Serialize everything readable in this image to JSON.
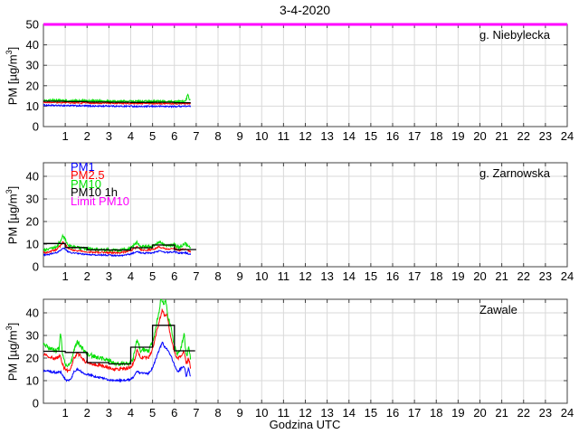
{
  "title": "3-4-2020",
  "xlabel": "Godzina UTC",
  "ylabel": {
    "pre": "PM [µg/m",
    "sup": "3",
    "post": "]"
  },
  "legend": {
    "items": [
      {
        "label": "PM1",
        "color": "#0000FF"
      },
      {
        "label": "PM2.5",
        "color": "#FF0000"
      },
      {
        "label": "PM10",
        "color": "#00DF00"
      },
      {
        "label": "PM10 1h",
        "color": "#000000"
      },
      {
        "label": "Limit PM10",
        "color": "#FF00FF"
      }
    ]
  },
  "chart_data": [
    {
      "type": "line",
      "station": "g. Niebylecka",
      "xlim": [
        0,
        24
      ],
      "ylim": [
        0,
        50
      ],
      "xticks": [
        1,
        2,
        3,
        4,
        5,
        6,
        7,
        8,
        9,
        10,
        11,
        12,
        13,
        14,
        15,
        16,
        17,
        18,
        19,
        20,
        21,
        22,
        23,
        24
      ],
      "yticks": [
        0,
        10,
        20,
        30,
        40,
        50
      ],
      "grid": true,
      "limit": {
        "label": "Limit PM10",
        "value": 50,
        "color": "#FF00FF"
      },
      "series": [
        {
          "name": "PM1",
          "color": "#0000FF",
          "noise": 0.35,
          "points": [
            [
              0,
              10.5
            ],
            [
              0.5,
              10.3
            ],
            [
              1,
              10.3
            ],
            [
              1.5,
              10.2
            ],
            [
              2,
              10.1
            ],
            [
              2.5,
              10.0
            ],
            [
              3,
              10.1
            ],
            [
              3.5,
              9.9
            ],
            [
              4,
              10.0
            ],
            [
              4.5,
              9.8
            ],
            [
              5,
              9.9
            ],
            [
              5.5,
              9.9
            ],
            [
              6,
              9.8
            ],
            [
              6.4,
              10.0
            ],
            [
              6.75,
              9.9
            ]
          ]
        },
        {
          "name": "PM2.5",
          "color": "#FF0000",
          "noise": 0.3,
          "points": [
            [
              0,
              11.9
            ],
            [
              1,
              11.7
            ],
            [
              2,
              11.5
            ],
            [
              3,
              11.4
            ],
            [
              4,
              11.3
            ],
            [
              5,
              11.3
            ],
            [
              6,
              11.2
            ],
            [
              6.75,
              11.3
            ]
          ]
        },
        {
          "name": "PM10",
          "color": "#00DF00",
          "noise": 0.55,
          "points": [
            [
              0,
              12.9
            ],
            [
              1,
              12.7
            ],
            [
              2,
              12.6
            ],
            [
              3,
              12.4
            ],
            [
              4,
              12.3
            ],
            [
              5,
              12.3
            ],
            [
              6,
              12.2
            ],
            [
              6.5,
              12.4
            ],
            [
              6.62,
              15.5
            ],
            [
              6.7,
              12.8
            ],
            [
              6.75,
              12.6
            ]
          ]
        },
        {
          "name": "PM10 1h",
          "color": "#000000",
          "type": "step",
          "end": 6.75,
          "hourly": [
            12.4,
            12.2,
            12.0,
            11.9,
            11.8,
            11.9,
            11.7
          ]
        }
      ]
    },
    {
      "type": "line",
      "station": "g. Zarnowska",
      "xlim": [
        0,
        24
      ],
      "ylim": [
        0,
        46
      ],
      "xticks": [
        1,
        2,
        3,
        4,
        5,
        6,
        7,
        8,
        9,
        10,
        11,
        12,
        13,
        14,
        15,
        16,
        17,
        18,
        19,
        20,
        21,
        22,
        23,
        24
      ],
      "yticks": [
        0,
        10,
        20,
        30,
        40
      ],
      "grid": true,
      "limit": {
        "label": "Limit PM10",
        "value": 50,
        "color": "#FF00FF"
      },
      "series": [
        {
          "name": "PM1",
          "color": "#0000FF",
          "noise": 0.3,
          "points": [
            [
              0,
              5.2
            ],
            [
              0.3,
              5.5
            ],
            [
              0.6,
              6.2
            ],
            [
              0.8,
              7.5
            ],
            [
              0.9,
              8.3
            ],
            [
              1.0,
              7.8
            ],
            [
              1.1,
              6.8
            ],
            [
              1.3,
              6.2
            ],
            [
              1.6,
              5.8
            ],
            [
              2,
              5.4
            ],
            [
              2.5,
              5.2
            ],
            [
              3,
              5.1
            ],
            [
              3.5,
              4.9
            ],
            [
              4,
              5.6
            ],
            [
              4.3,
              6.8
            ],
            [
              4.5,
              6.0
            ],
            [
              5,
              6.1
            ],
            [
              5.3,
              7.0
            ],
            [
              5.6,
              6.3
            ],
            [
              6,
              6.6
            ],
            [
              6.2,
              6.0
            ],
            [
              6.5,
              6.2
            ],
            [
              6.75,
              5.4
            ]
          ]
        },
        {
          "name": "PM2.5",
          "color": "#FF0000",
          "noise": 0.4,
          "points": [
            [
              0,
              6.2
            ],
            [
              0.3,
              6.6
            ],
            [
              0.6,
              7.6
            ],
            [
              0.8,
              9.5
            ],
            [
              0.9,
              11.0
            ],
            [
              1.0,
              10.0
            ],
            [
              1.1,
              8.5
            ],
            [
              1.3,
              7.5
            ],
            [
              1.6,
              7.0
            ],
            [
              2,
              6.6
            ],
            [
              2.5,
              6.4
            ],
            [
              3,
              6.3
            ],
            [
              3.5,
              6.1
            ],
            [
              4,
              7.0
            ],
            [
              4.3,
              8.8
            ],
            [
              4.5,
              7.4
            ],
            [
              5,
              7.6
            ],
            [
              5.3,
              8.8
            ],
            [
              5.6,
              7.8
            ],
            [
              6,
              8.1
            ],
            [
              6.2,
              7.3
            ],
            [
              6.5,
              7.8
            ],
            [
              6.75,
              6.6
            ]
          ]
        },
        {
          "name": "PM10",
          "color": "#00DF00",
          "noise": 0.7,
          "points": [
            [
              0,
              7.2
            ],
            [
              0.3,
              7.8
            ],
            [
              0.6,
              9.0
            ],
            [
              0.8,
              11.5
            ],
            [
              0.9,
              13.8
            ],
            [
              1.0,
              12.0
            ],
            [
              1.1,
              10.0
            ],
            [
              1.3,
              8.8
            ],
            [
              1.6,
              8.3
            ],
            [
              2,
              8.0
            ],
            [
              2.5,
              7.6
            ],
            [
              3,
              7.6
            ],
            [
              3.5,
              7.2
            ],
            [
              4,
              8.2
            ],
            [
              4.3,
              10.8
            ],
            [
              4.5,
              8.8
            ],
            [
              5,
              9.0
            ],
            [
              5.3,
              11.0
            ],
            [
              5.6,
              9.2
            ],
            [
              6,
              9.8
            ],
            [
              6.2,
              8.6
            ],
            [
              6.5,
              10.2
            ],
            [
              6.75,
              8.0
            ]
          ]
        },
        {
          "name": "PM10 1h",
          "color": "#000000",
          "type": "step",
          "end": 7.0,
          "hourly": [
            10.3,
            8.5,
            7.5,
            7.4,
            8.4,
            9.6,
            7.6
          ]
        }
      ]
    },
    {
      "type": "line",
      "station": "Zawale",
      "xlim": [
        0,
        24
      ],
      "ylim": [
        0,
        46
      ],
      "xticks": [
        1,
        2,
        3,
        4,
        5,
        6,
        7,
        8,
        9,
        10,
        11,
        12,
        13,
        14,
        15,
        16,
        17,
        18,
        19,
        20,
        21,
        22,
        23,
        24
      ],
      "yticks": [
        0,
        10,
        20,
        30,
        40
      ],
      "grid": true,
      "limit": {
        "label": "Limit PM10",
        "value": 50,
        "color": "#FF00FF"
      },
      "series": [
        {
          "name": "PM1",
          "color": "#0000FF",
          "noise": 0.45,
          "points": [
            [
              0,
              14.5
            ],
            [
              0.3,
              14.0
            ],
            [
              0.6,
              13.6
            ],
            [
              0.8,
              13.8
            ],
            [
              0.95,
              11.0
            ],
            [
              1.1,
              10.0
            ],
            [
              1.25,
              10.4
            ],
            [
              1.4,
              14.0
            ],
            [
              1.55,
              15.0
            ],
            [
              1.7,
              14.2
            ],
            [
              1.9,
              13.0
            ],
            [
              2.1,
              12.6
            ],
            [
              2.4,
              11.6
            ],
            [
              2.7,
              11.2
            ],
            [
              3.0,
              10.2
            ],
            [
              3.3,
              10.0
            ],
            [
              3.6,
              10.2
            ],
            [
              3.9,
              10.4
            ],
            [
              4.1,
              11.2
            ],
            [
              4.3,
              14.3
            ],
            [
              4.45,
              13.2
            ],
            [
              4.6,
              13.4
            ],
            [
              4.8,
              13.0
            ],
            [
              5.0,
              15.5
            ],
            [
              5.15,
              19.5
            ],
            [
              5.3,
              23.5
            ],
            [
              5.45,
              27.0
            ],
            [
              5.55,
              25.0
            ],
            [
              5.7,
              23.5
            ],
            [
              5.85,
              21.0
            ],
            [
              6.0,
              17.0
            ],
            [
              6.15,
              13.8
            ],
            [
              6.3,
              15.5
            ],
            [
              6.45,
              16.5
            ],
            [
              6.55,
              11.5
            ],
            [
              6.65,
              15.8
            ],
            [
              6.75,
              11.2
            ]
          ]
        },
        {
          "name": "PM2.5",
          "color": "#FF0000",
          "noise": 0.7,
          "points": [
            [
              0,
              21.5
            ],
            [
              0.3,
              20.5
            ],
            [
              0.6,
              19.8
            ],
            [
              0.75,
              21.0
            ],
            [
              0.95,
              15.5
            ],
            [
              1.1,
              14.3
            ],
            [
              1.25,
              15.0
            ],
            [
              1.4,
              20.0
            ],
            [
              1.55,
              22.0
            ],
            [
              1.7,
              21.0
            ],
            [
              1.9,
              18.5
            ],
            [
              2.1,
              18.0
            ],
            [
              2.4,
              17.0
            ],
            [
              2.7,
              16.6
            ],
            [
              3.0,
              15.8
            ],
            [
              3.3,
              15.0
            ],
            [
              3.6,
              15.2
            ],
            [
              3.9,
              15.6
            ],
            [
              4.1,
              17.0
            ],
            [
              4.3,
              23.5
            ],
            [
              4.45,
              20.0
            ],
            [
              4.6,
              20.5
            ],
            [
              4.8,
              20.0
            ],
            [
              5.0,
              24.0
            ],
            [
              5.15,
              30.0
            ],
            [
              5.3,
              36.0
            ],
            [
              5.45,
              41.5
            ],
            [
              5.55,
              38.5
            ],
            [
              5.65,
              40.0
            ],
            [
              5.8,
              31.0
            ],
            [
              6.0,
              22.5
            ],
            [
              6.15,
              19.5
            ],
            [
              6.3,
              21.0
            ],
            [
              6.45,
              23.0
            ],
            [
              6.55,
              17.0
            ],
            [
              6.65,
              20.0
            ],
            [
              6.75,
              15.5
            ]
          ]
        },
        {
          "name": "PM10",
          "color": "#00DF00",
          "noise": 1.0,
          "points": [
            [
              0,
              26.0
            ],
            [
              0.3,
              24.0
            ],
            [
              0.6,
              23.2
            ],
            [
              0.72,
              24.5
            ],
            [
              0.79,
              31.5
            ],
            [
              0.86,
              23.0
            ],
            [
              0.95,
              18.5
            ],
            [
              1.1,
              16.2
            ],
            [
              1.25,
              17.5
            ],
            [
              1.4,
              24.0
            ],
            [
              1.55,
              27.0
            ],
            [
              1.7,
              25.5
            ],
            [
              1.9,
              22.5
            ],
            [
              2.1,
              21.5
            ],
            [
              2.4,
              20.5
            ],
            [
              2.7,
              19.8
            ],
            [
              3.0,
              19.0
            ],
            [
              3.3,
              17.5
            ],
            [
              3.6,
              17.6
            ],
            [
              3.9,
              17.8
            ],
            [
              4.1,
              19.5
            ],
            [
              4.3,
              28.5
            ],
            [
              4.45,
              23.0
            ],
            [
              4.6,
              24.0
            ],
            [
              4.8,
              23.0
            ],
            [
              5.0,
              27.0
            ],
            [
              5.15,
              33.5
            ],
            [
              5.3,
              41.0
            ],
            [
              5.4,
              47.0
            ],
            [
              5.5,
              43.5
            ],
            [
              5.6,
              45.5
            ],
            [
              5.7,
              39.0
            ],
            [
              5.85,
              33.0
            ],
            [
              6.0,
              25.5
            ],
            [
              6.15,
              22.0
            ],
            [
              6.3,
              24.5
            ],
            [
              6.45,
              30.5
            ],
            [
              6.55,
              20.5
            ],
            [
              6.65,
              24.5
            ],
            [
              6.75,
              19.0
            ]
          ]
        },
        {
          "name": "PM10 1h",
          "color": "#000000",
          "type": "step",
          "end": 6.95,
          "hourly": [
            23,
            22.5,
            18,
            17.4,
            24.8,
            34.5,
            23.2
          ]
        }
      ]
    }
  ]
}
